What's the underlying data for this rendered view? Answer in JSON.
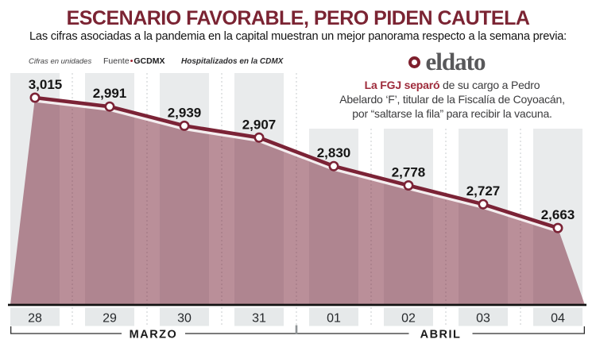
{
  "header": {
    "title": "ESCENARIO FAVORABLE, PERO PIDEN CAUTELA",
    "subtitle": "Las cifras asociadas a la pandemia en la capital muestran un mejor panorama respecto a la semana previa:",
    "units_note": "Cifras en unidades",
    "source_prefix": "Fuente",
    "source_bullet": "•",
    "source_name": "GCDMX",
    "series_label": "Hospitalizados en la CDMX"
  },
  "eldato": {
    "logo_text": "eldato",
    "lead": "La FGJ separó",
    "line1_rest": " de su cargo a Pedro",
    "line2": "Abelardo ‘F’, titular de la Fiscalía de Coyoacán,",
    "line3": "por “saltarse la fila” para recibir la vacuna."
  },
  "chart_data": {
    "type": "area",
    "title": "Hospitalizados en la CDMX",
    "categories": [
      "28",
      "29",
      "30",
      "31",
      "01",
      "02",
      "03",
      "04"
    ],
    "values": [
      3015,
      2991,
      2939,
      2907,
      2830,
      2778,
      2727,
      2663
    ],
    "value_labels": [
      "3,015",
      "2,991",
      "2,939",
      "2,907",
      "2,830",
      "2,778",
      "2,727",
      "2,663"
    ],
    "months": [
      {
        "label": "MARZO",
        "from": 0,
        "to": 3
      },
      {
        "label": "ABRIL",
        "from": 4,
        "to": 7
      }
    ],
    "ylim": [
      2455,
      3015
    ],
    "grid": "vertical-dashed",
    "legend": "none",
    "colors": {
      "line": "#7b2336",
      "area": "rgba(123,40,60,0.52)",
      "band": "#e9ebec",
      "tick_band": "#e6e9ea",
      "gridline": "#c7cbcc",
      "marker_fill": "#ffffff",
      "baseline": "#111111"
    }
  }
}
